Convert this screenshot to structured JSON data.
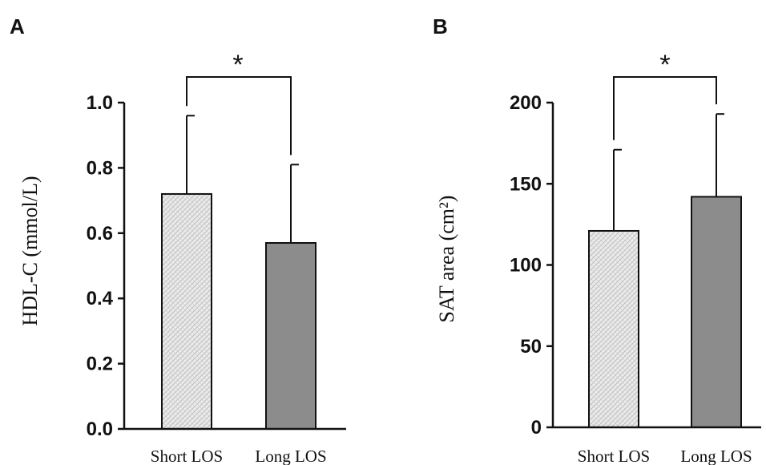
{
  "chart_data": [
    {
      "panel": "A",
      "type": "bar",
      "ylabel": "HDL-C (mmol/L)",
      "categories": [
        "Short LOS",
        "Long LOS"
      ],
      "values": [
        0.72,
        0.57
      ],
      "error_upper": [
        0.96,
        0.81
      ],
      "ylim": [
        0,
        1.0
      ],
      "yticks": [
        0.0,
        0.2,
        0.4,
        0.6,
        0.8,
        1.0
      ],
      "ytick_labels": [
        "0.0",
        "0.2",
        "0.4",
        "0.6",
        "0.8",
        "1.0"
      ],
      "significance": "*",
      "bar_styles": [
        "hatched",
        "solid"
      ],
      "colors": {
        "solid": "#8c8c8c",
        "hatch_bg": "#ececec",
        "hatch_line": "#bdbdbd"
      }
    },
    {
      "panel": "B",
      "type": "bar",
      "ylabel": "SAT area (cm²)",
      "categories": [
        "Short LOS",
        "Long LOS"
      ],
      "values": [
        121,
        142
      ],
      "error_upper": [
        171,
        193
      ],
      "ylim": [
        0,
        200
      ],
      "yticks": [
        0,
        50,
        100,
        150,
        200
      ],
      "ytick_labels": [
        "0",
        "50",
        "100",
        "150",
        "200"
      ],
      "significance": "*",
      "bar_styles": [
        "hatched",
        "solid"
      ],
      "colors": {
        "solid": "#8c8c8c",
        "hatch_bg": "#ececec",
        "hatch_line": "#bdbdbd"
      }
    }
  ]
}
